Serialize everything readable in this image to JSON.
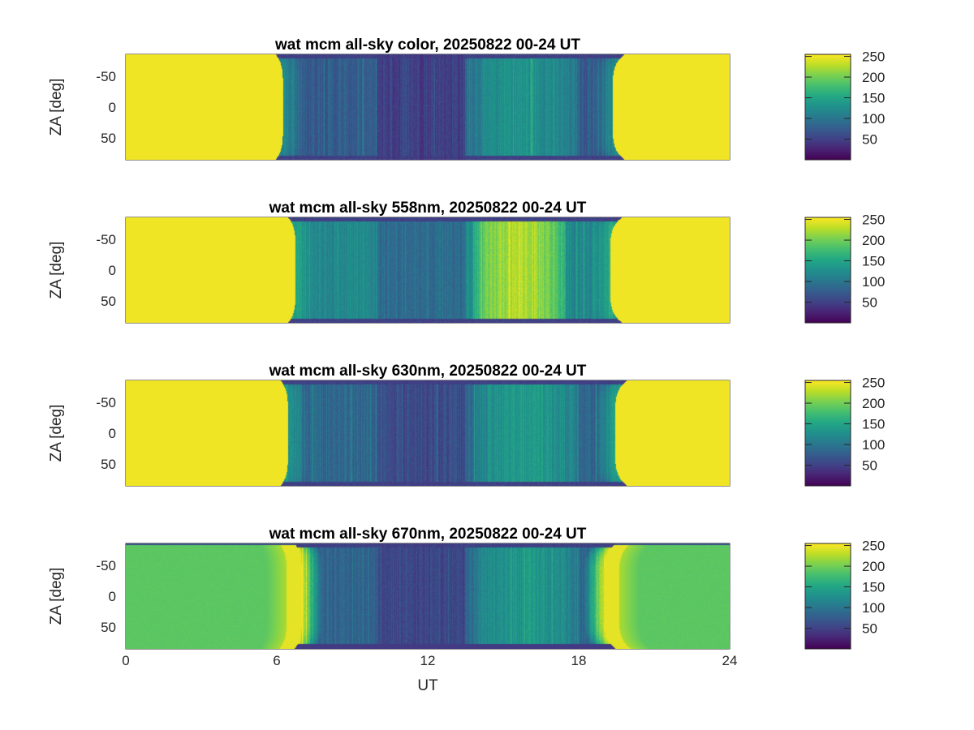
{
  "figure": {
    "xlabel": "UT",
    "colormap": "viridis"
  },
  "chart_data": [
    {
      "type": "heatmap",
      "title": "wat mcm all-sky color, 20250822 00-24 UT",
      "xlabel": "",
      "ylabel": "ZA [deg]",
      "xlim": [
        0,
        24
      ],
      "ylim": [
        -85,
        85
      ],
      "xticks": [
        "0",
        "6",
        "12",
        "18",
        "24"
      ],
      "xtick_values": [
        0,
        6,
        12,
        18,
        24
      ],
      "yticks": [
        "-50",
        "0",
        "50"
      ],
      "ytick_values": [
        -50,
        0,
        50
      ],
      "show_xticklabels": false,
      "grid": true,
      "clim": [
        0,
        255
      ],
      "colorbar_ticks": [
        "50",
        "100",
        "150",
        "200",
        "250"
      ],
      "colorbar_tick_values": [
        50,
        100,
        150,
        200,
        250
      ],
      "profile": {
        "day_value": 250,
        "night_start_ut": 6.3,
        "night_end_ut": 19.3,
        "dawn_edge_value": 120,
        "dark_band_ut": [
          10,
          13.5
        ],
        "dark_band_value": 50,
        "bright_band_ut": [
          13.5,
          18
        ],
        "bright_band_value": 130,
        "base_night_value": 75
      }
    },
    {
      "type": "heatmap",
      "title": "wat mcm all-sky 558nm, 20250822 00-24 UT",
      "xlabel": "",
      "ylabel": "ZA [deg]",
      "xlim": [
        0,
        24
      ],
      "ylim": [
        -85,
        85
      ],
      "xticks": [
        "0",
        "6",
        "12",
        "18",
        "24"
      ],
      "xtick_values": [
        0,
        6,
        12,
        18,
        24
      ],
      "yticks": [
        "-50",
        "0",
        "50"
      ],
      "ytick_values": [
        -50,
        0,
        50
      ],
      "show_xticklabels": false,
      "grid": true,
      "clim": [
        0,
        255
      ],
      "colorbar_ticks": [
        "50",
        "100",
        "150",
        "200",
        "250"
      ],
      "colorbar_tick_values": [
        50,
        100,
        150,
        200,
        250
      ],
      "profile": {
        "day_value": 250,
        "night_start_ut": 6.8,
        "night_end_ut": 19.2,
        "dawn_edge_value": 150,
        "dark_band_ut": [
          10,
          13.5
        ],
        "dark_band_value": 90,
        "bright_band_ut": [
          13.8,
          17.5
        ],
        "bright_band_value": 225,
        "base_night_value": 120
      }
    },
    {
      "type": "heatmap",
      "title": "wat mcm all-sky 630nm, 20250822 00-24 UT",
      "xlabel": "",
      "ylabel": "ZA [deg]",
      "xlim": [
        0,
        24
      ],
      "ylim": [
        -85,
        85
      ],
      "xticks": [
        "0",
        "6",
        "12",
        "18",
        "24"
      ],
      "xtick_values": [
        0,
        6,
        12,
        18,
        24
      ],
      "yticks": [
        "-50",
        "0",
        "50"
      ],
      "ytick_values": [
        -50,
        0,
        50
      ],
      "show_xticklabels": false,
      "grid": true,
      "clim": [
        0,
        255
      ],
      "colorbar_ticks": [
        "50",
        "100",
        "150",
        "200",
        "250"
      ],
      "colorbar_tick_values": [
        50,
        100,
        150,
        200,
        250
      ],
      "profile": {
        "day_value": 250,
        "night_start_ut": 6.5,
        "night_end_ut": 19.4,
        "dawn_edge_value": 140,
        "dark_band_ut": [
          10,
          13.5
        ],
        "dark_band_value": 60,
        "bright_band_ut": [
          13.8,
          18
        ],
        "bright_band_value": 140,
        "base_night_value": 85
      }
    },
    {
      "type": "heatmap",
      "title": "wat mcm all-sky 670nm, 20250822 00-24 UT",
      "xlabel": "UT",
      "ylabel": "ZA [deg]",
      "xlim": [
        0,
        24
      ],
      "ylim": [
        -85,
        85
      ],
      "xticks": [
        "0",
        "6",
        "12",
        "18",
        "24"
      ],
      "xtick_values": [
        0,
        6,
        12,
        18,
        24
      ],
      "yticks": [
        "-50",
        "0",
        "50"
      ],
      "ytick_values": [
        -50,
        0,
        50
      ],
      "show_xticklabels": true,
      "grid": true,
      "clim": [
        0,
        255
      ],
      "colorbar_ticks": [
        "50",
        "100",
        "150",
        "200",
        "250"
      ],
      "colorbar_tick_values": [
        50,
        100,
        150,
        200,
        250
      ],
      "profile": {
        "day_value": 190,
        "night_start_ut": 7.0,
        "night_end_ut": 19.0,
        "dawn_edge_value": 245,
        "dark_band_ut": [
          10,
          13.5
        ],
        "dark_band_value": 55,
        "bright_band_ut": [
          13.8,
          18
        ],
        "bright_band_value": 135,
        "base_night_value": 85
      }
    }
  ]
}
